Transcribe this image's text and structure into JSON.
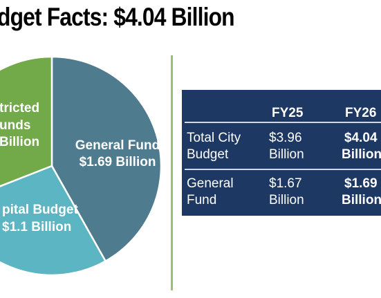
{
  "title": "dget Facts: $4.04 Billion",
  "colors": {
    "general_fund": "#4f7b8f",
    "capital_budget": "#5bb5c3",
    "restricted_funds": "#72aa4a",
    "table_bg": "#1e3864",
    "divider": "#9fbf6e"
  },
  "chart_data": {
    "type": "pie",
    "title": "dget Facts: $4.04 Billion",
    "slices": [
      {
        "label_lines": [
          "General Fund",
          "$1.69 Billion"
        ],
        "value": 1.69
      },
      {
        "label_lines": [
          "pital Budget",
          "$1.1 Billion"
        ],
        "value": 1.1
      },
      {
        "label_lines": [
          "tricted",
          "unds",
          "Billion"
        ],
        "value": 1.25
      }
    ]
  },
  "table": {
    "header": [
      "",
      "FY25",
      "FY26"
    ],
    "rows": [
      {
        "label": [
          "Total City",
          "Budget"
        ],
        "fy25": [
          "$3.96",
          "Billion"
        ],
        "fy26": [
          "$4.04",
          "Billion"
        ]
      },
      {
        "label": [
          "General",
          "Fund"
        ],
        "fy25": [
          "$1.67",
          "Billion"
        ],
        "fy26": [
          "$1.69",
          "Billion"
        ]
      }
    ]
  }
}
